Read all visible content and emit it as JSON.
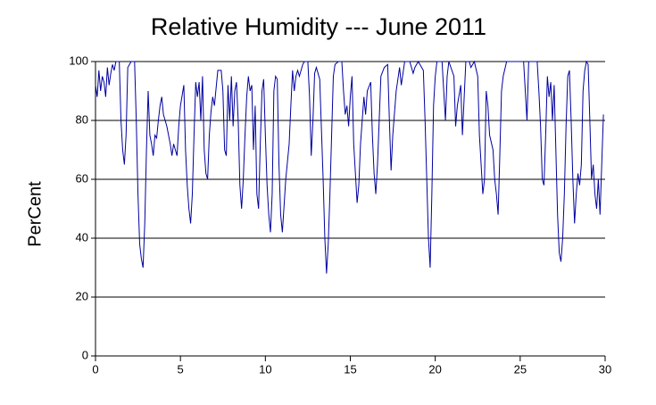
{
  "chart_data": {
    "type": "line",
    "title": "Relative Humidity --- June 2011",
    "y_label": "PerCent",
    "color": "#0000a0",
    "grid": true,
    "xlim": [
      0,
      30
    ],
    "xticks": [
      0,
      5,
      10,
      15,
      20,
      25,
      30
    ],
    "ylim": [
      0,
      100
    ],
    "yticks": [
      0,
      20,
      40,
      60,
      80,
      100
    ],
    "x": [
      0,
      0.1,
      0.2,
      0.3,
      0.4,
      0.5,
      0.6,
      0.7,
      0.8,
      0.9,
      1,
      1.1,
      1.2,
      1.4,
      1.5,
      1.6,
      1.7,
      1.8,
      1.9,
      2.1,
      2.3,
      2.4,
      2.5,
      2.6,
      2.7,
      2.8,
      2.9,
      3,
      3.1,
      3.2,
      3.3,
      3.4,
      3.5,
      3.6,
      3.7,
      3.8,
      3.9,
      4,
      4.1,
      4.2,
      4.3,
      4.4,
      4.5,
      4.6,
      4.7,
      4.8,
      4.9,
      5,
      5.2,
      5.3,
      5.4,
      5.5,
      5.6,
      5.7,
      5.8,
      5.9,
      6,
      6.1,
      6.2,
      6.3,
      6.4,
      6.5,
      6.6,
      6.7,
      6.8,
      6.9,
      7,
      7.2,
      7.4,
      7.5,
      7.6,
      7.7,
      7.8,
      7.9,
      8,
      8.1,
      8.2,
      8.3,
      8.4,
      8.5,
      8.6,
      8.7,
      8.8,
      8.9,
      9,
      9.1,
      9.2,
      9.3,
      9.4,
      9.5,
      9.6,
      9.7,
      9.8,
      9.9,
      10,
      10.1,
      10.2,
      10.3,
      10.4,
      10.5,
      10.6,
      10.7,
      10.8,
      10.9,
      11,
      11.2,
      11.4,
      11.5,
      11.6,
      11.7,
      11.8,
      11.9,
      12,
      12.2,
      12.3,
      12.5,
      12.6,
      12.7,
      12.8,
      12.9,
      13,
      13.2,
      13.4,
      13.5,
      13.6,
      13.7,
      13.8,
      13.9,
      14,
      14.1,
      14.3,
      14.5,
      14.6,
      14.7,
      14.8,
      14.9,
      15,
      15.1,
      15.2,
      15.3,
      15.4,
      15.5,
      15.6,
      15.8,
      15.9,
      16,
      16.2,
      16.3,
      16.4,
      16.5,
      16.6,
      16.7,
      16.8,
      17,
      17.2,
      17.3,
      17.4,
      17.5,
      17.7,
      17.9,
      18,
      18.2,
      18.5,
      18.7,
      18.8,
      19,
      19.2,
      19.3,
      19.4,
      19.5,
      19.6,
      19.7,
      19.8,
      19.9,
      20,
      20.1,
      20.4,
      20.5,
      20.6,
      20.7,
      20.8,
      21.1,
      21.2,
      21.3,
      21.5,
      21.6,
      21.8,
      22,
      22.1,
      22.3,
      22.5,
      22.6,
      22.7,
      22.8,
      22.9,
      23,
      23.1,
      23.2,
      23.4,
      23.5,
      23.6,
      23.7,
      23.8,
      23.9,
      24,
      24.2,
      24.8,
      25,
      25.2,
      25.4,
      25.5,
      26,
      26.1,
      26.2,
      26.3,
      26.4,
      26.5,
      26.6,
      26.7,
      26.8,
      26.9,
      27,
      27.1,
      27.2,
      27.3,
      27.4,
      27.5,
      27.6,
      27.7,
      27.8,
      27.9,
      28,
      28.1,
      28.2,
      28.3,
      28.4,
      28.5,
      28.6,
      28.7,
      28.8,
      28.9,
      29,
      29.1,
      29.2,
      29.3,
      29.4,
      29.5,
      29.6,
      29.7,
      29.8,
      29.9
    ],
    "values": [
      92,
      88,
      97,
      90,
      95,
      93,
      88,
      98,
      92,
      96,
      99,
      97,
      100,
      100,
      80,
      70,
      65,
      75,
      98,
      100,
      100,
      80,
      55,
      38,
      33,
      30,
      45,
      70,
      90,
      75,
      72,
      68,
      75,
      74,
      80,
      85,
      88,
      82,
      80,
      78,
      75,
      72,
      68,
      72,
      70,
      68,
      78,
      85,
      92,
      70,
      58,
      50,
      45,
      55,
      75,
      93,
      88,
      93,
      80,
      95,
      70,
      62,
      60,
      75,
      83,
      88,
      85,
      97,
      97,
      90,
      70,
      68,
      92,
      80,
      95,
      78,
      90,
      93,
      80,
      58,
      50,
      60,
      75,
      88,
      95,
      90,
      92,
      70,
      85,
      55,
      50,
      72,
      90,
      94,
      75,
      58,
      48,
      42,
      55,
      90,
      95,
      94,
      65,
      48,
      42,
      60,
      72,
      85,
      97,
      90,
      95,
      97,
      95,
      99,
      100,
      100,
      88,
      68,
      80,
      96,
      98,
      94,
      60,
      40,
      28,
      38,
      55,
      75,
      95,
      99,
      100,
      100,
      90,
      82,
      85,
      78,
      88,
      95,
      72,
      62,
      52,
      58,
      72,
      88,
      82,
      90,
      93,
      75,
      62,
      55,
      65,
      80,
      95,
      98,
      99,
      80,
      63,
      75,
      90,
      98,
      92,
      100,
      100,
      96,
      98,
      100,
      98,
      97,
      80,
      60,
      40,
      30,
      55,
      85,
      95,
      100,
      100,
      90,
      80,
      95,
      100,
      95,
      78,
      85,
      92,
      75,
      100,
      100,
      98,
      100,
      95,
      75,
      65,
      55,
      60,
      90,
      85,
      75,
      70,
      60,
      55,
      48,
      68,
      90,
      95,
      100,
      100,
      100,
      100,
      80,
      100,
      100,
      90,
      78,
      60,
      58,
      75,
      95,
      88,
      93,
      80,
      92,
      70,
      48,
      35,
      32,
      40,
      55,
      78,
      95,
      97,
      80,
      60,
      45,
      55,
      62,
      58,
      65,
      90,
      97,
      100,
      99,
      80,
      60,
      65,
      55,
      50,
      60,
      48,
      65,
      82
    ]
  }
}
